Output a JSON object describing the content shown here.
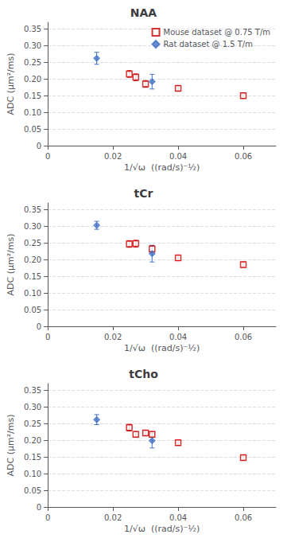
{
  "chart_data": [
    {
      "type": "scatter",
      "title": "NAA",
      "xlabel": "1/√ω  ((rad/s)⁻½)",
      "ylabel": "ADC (μm²/ms)",
      "series": [
        {
          "name": "Mouse dataset @ 0.75 T/m",
          "color": "#cc0000",
          "marker": "square-open",
          "x": [
            0.025,
            0.027,
            0.03,
            0.04,
            0.06
          ],
          "values": [
            0.215,
            0.205,
            0.185,
            0.172,
            0.15
          ],
          "errors": [
            0.01,
            0.01,
            0.01,
            0.008,
            0.008
          ]
        },
        {
          "name": "Rat dataset @ 1.5 T/m",
          "color": "#4472c4",
          "marker": "diamond",
          "x": [
            0.015,
            0.032
          ],
          "values": [
            0.262,
            0.192
          ],
          "errors": [
            0.018,
            0.022
          ]
        }
      ],
      "xlim": [
        0,
        0.07
      ],
      "xticks": [
        0,
        0.02,
        0.04,
        0.06
      ],
      "ylim": [
        0,
        0.37
      ],
      "yticks": [
        0,
        0.05,
        {
          "value": 0.1,
          "label": "0.10"
        },
        0.15,
        {
          "value": 0.2,
          "label": "0.20"
        },
        0.25,
        {
          "value": 0.3,
          "label": "0.30"
        },
        0.35
      ],
      "grid": true,
      "legend": "upper right"
    },
    {
      "type": "scatter",
      "title": "tCr",
      "xlabel": "1/√ω  ((rad/s)⁻½)",
      "ylabel": "ADC (μm²/ms)",
      "series": [
        {
          "color": "#cc0000",
          "marker": "square-open",
          "x": [
            0.025,
            0.027,
            0.032,
            0.04,
            0.06
          ],
          "values": [
            0.247,
            0.248,
            0.232,
            0.205,
            0.185
          ],
          "errors": [
            0.01,
            0.01,
            0.01,
            0.008,
            0.008
          ]
        },
        {
          "color": "#4472c4",
          "marker": "diamond",
          "x": [
            0.015,
            0.032
          ],
          "values": [
            0.303,
            0.218
          ],
          "errors": [
            0.012,
            0.025
          ]
        }
      ],
      "xlim": [
        0,
        0.07
      ],
      "xticks": [
        0,
        0.02,
        0.04,
        0.06
      ],
      "ylim": [
        0,
        0.37
      ],
      "yticks": [
        0,
        0.05,
        {
          "value": 0.1,
          "label": "0.10"
        },
        0.15,
        {
          "value": 0.2,
          "label": "0.20"
        },
        0.25,
        {
          "value": 0.3,
          "label": "0.30"
        },
        0.35
      ],
      "grid": true
    },
    {
      "type": "scatter",
      "title": "tCho",
      "xlabel": "1/√ω  ((rad/s)⁻½)",
      "ylabel": "ADC (μm²/ms)",
      "series": [
        {
          "color": "#cc0000",
          "marker": "square-open",
          "x": [
            0.025,
            0.027,
            0.03,
            0.032,
            0.04,
            0.06
          ],
          "values": [
            0.238,
            0.218,
            0.222,
            0.218,
            0.193,
            0.148
          ],
          "errors": [
            0.01,
            0.008,
            0.008,
            0.008,
            0.008,
            0.008
          ]
        },
        {
          "color": "#4472c4",
          "marker": "diamond",
          "x": [
            0.015,
            0.032
          ],
          "values": [
            0.262,
            0.199
          ],
          "errors": [
            0.015,
            0.022
          ]
        }
      ],
      "xlim": [
        0,
        0.07
      ],
      "xticks": [
        0,
        0.02,
        0.04,
        0.06
      ],
      "ylim": [
        0,
        0.37
      ],
      "yticks": [
        0,
        0.05,
        {
          "value": 0.1,
          "label": "0.10"
        },
        0.15,
        {
          "value": 0.2,
          "label": "0.20"
        },
        0.25,
        {
          "value": 0.3,
          "label": "0.30"
        },
        0.35
      ],
      "grid": true
    }
  ]
}
